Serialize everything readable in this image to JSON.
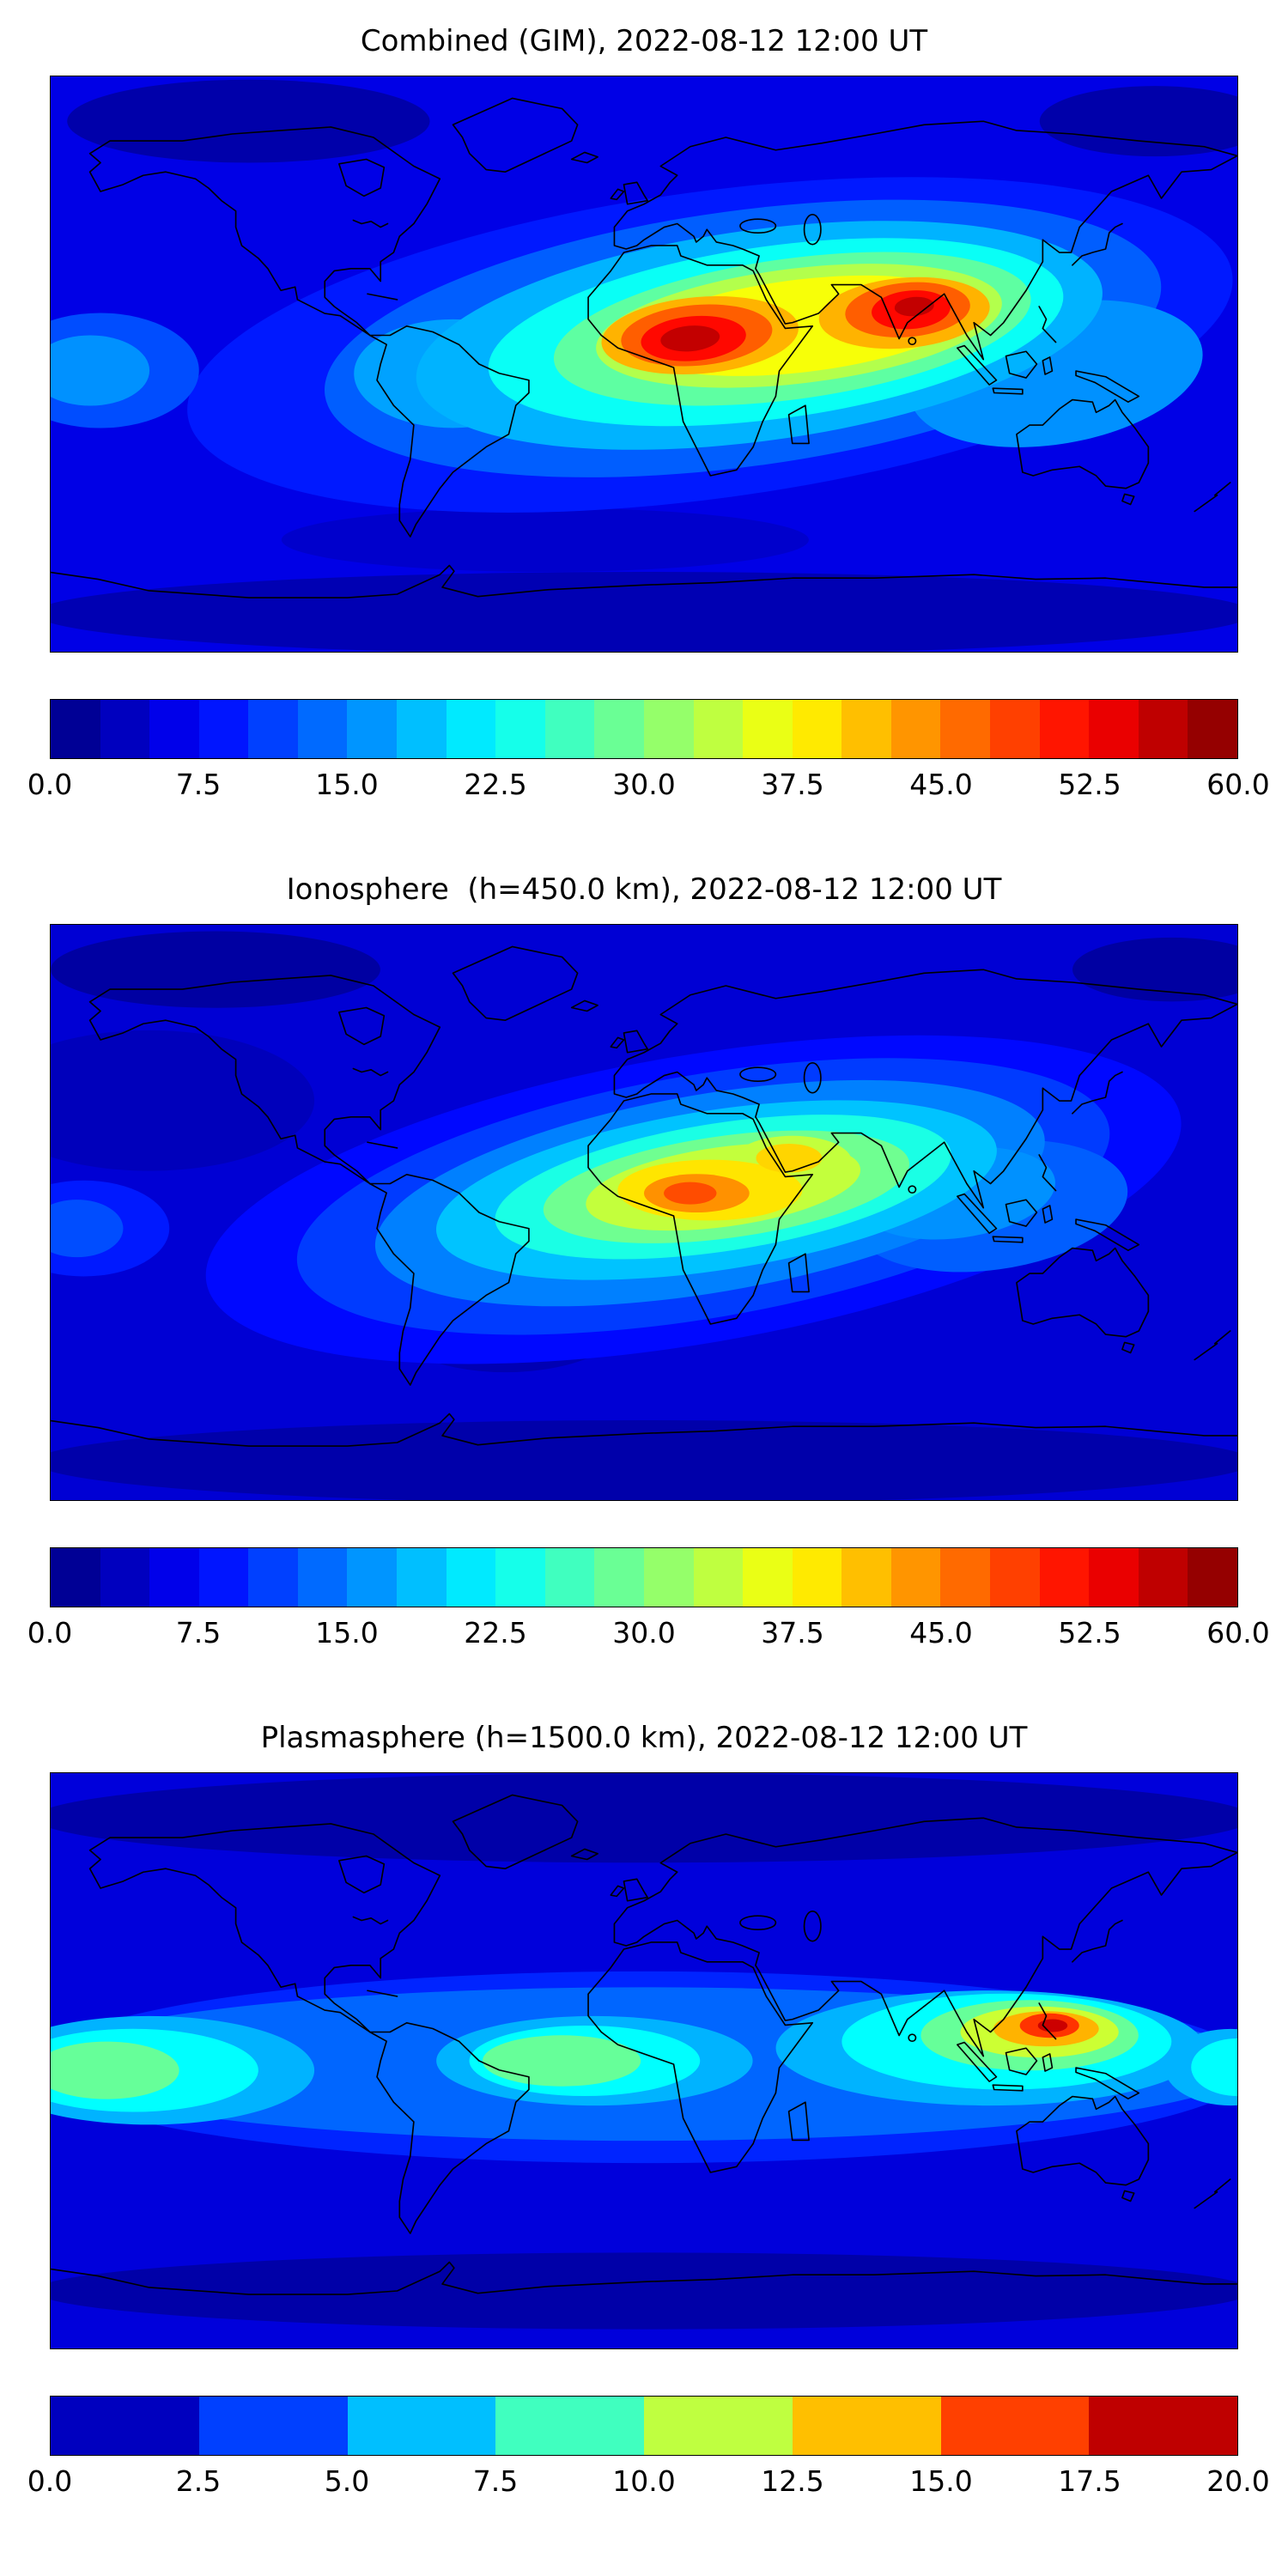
{
  "chart_data": [
    {
      "type": "heatmap",
      "subtype": "filled_contour_world_map",
      "title": "Combined (GIM), 2022-08-12 12:00 UT",
      "colormap": "jet",
      "lon_range": [
        -180,
        180
      ],
      "lat_range": [
        -90,
        90
      ],
      "grid": false,
      "base_value": 6,
      "colorbar": {
        "vmin": 0.0,
        "vmax": 60.0,
        "n_segments": 24,
        "orientation": "horizontal",
        "ticks": [
          "0.0",
          "7.5",
          "15.0",
          "22.5",
          "30.0",
          "37.5",
          "45.0",
          "52.5",
          "60.0"
        ]
      },
      "approx_contours": [
        {
          "lon": -120,
          "lat": 76,
          "rx": 55,
          "ry": 13,
          "v": 2.5
        },
        {
          "lon": 155,
          "lat": 76,
          "rx": 35,
          "ry": 11,
          "v": 2.5
        },
        {
          "lon": 0,
          "lat": -78,
          "rx": 185,
          "ry": 13,
          "v": 3
        },
        {
          "lon": -30,
          "lat": -55,
          "rx": 80,
          "ry": 10,
          "v": 4.5
        },
        {
          "lon": 20,
          "lat": 6,
          "rx": 160,
          "ry": 48,
          "rot": -8,
          "v": 9
        },
        {
          "lon": -165,
          "lat": -2,
          "rx": 30,
          "ry": 18,
          "v": 12
        },
        {
          "lon": -168,
          "lat": -2,
          "rx": 18,
          "ry": 11,
          "v": 16
        },
        {
          "lon": 30,
          "lat": 8,
          "rx": 128,
          "ry": 40,
          "rot": -8,
          "v": 13
        },
        {
          "lon": -58,
          "lat": -3,
          "rx": 30,
          "ry": 17,
          "v": 17
        },
        {
          "lon": 125,
          "lat": -3,
          "rx": 45,
          "ry": 22,
          "rot": -10,
          "v": 16
        },
        {
          "lon": 35,
          "lat": 9,
          "rx": 105,
          "ry": 33,
          "rot": -8,
          "v": 18
        },
        {
          "lon": 40,
          "lat": 10,
          "rx": 88,
          "ry": 27,
          "rot": -8,
          "v": 23
        },
        {
          "lon": 45,
          "lat": 11,
          "rx": 73,
          "ry": 22,
          "rot": -8,
          "v": 28
        },
        {
          "lon": 47,
          "lat": 12,
          "rx": 62,
          "ry": 18,
          "rot": -7,
          "v": 33
        },
        {
          "lon": 48,
          "lat": 12,
          "rx": 52,
          "ry": 14.5,
          "rot": -7,
          "v": 37
        },
        {
          "lon": 17,
          "lat": 9,
          "rx": 30,
          "ry": 12,
          "rot": -5,
          "v": 42
        },
        {
          "lon": 16,
          "lat": 9,
          "rx": 23,
          "ry": 9.5,
          "rot": -5,
          "v": 47
        },
        {
          "lon": 15,
          "lat": 8,
          "rx": 16,
          "ry": 7,
          "rot": -5,
          "v": 52
        },
        {
          "lon": 14,
          "lat": 8,
          "rx": 9,
          "ry": 4,
          "rot": -5,
          "v": 56
        },
        {
          "lon": 79,
          "lat": 16,
          "rx": 26,
          "ry": 11,
          "rot": -5,
          "v": 42
        },
        {
          "lon": 80,
          "lat": 17,
          "rx": 19,
          "ry": 8.5,
          "rot": -5,
          "v": 47
        },
        {
          "lon": 81,
          "lat": 17,
          "rx": 12,
          "ry": 6,
          "rot": -5,
          "v": 52
        },
        {
          "lon": 82,
          "lat": 18,
          "rx": 6,
          "ry": 3,
          "rot": -5,
          "v": 56
        }
      ]
    },
    {
      "type": "heatmap",
      "subtype": "filled_contour_world_map",
      "title": "Ionosphere  (h=450.0 km), 2022-08-12 12:00 UT",
      "colormap": "jet",
      "lon_range": [
        -180,
        180
      ],
      "lat_range": [
        -90,
        90
      ],
      "grid": false,
      "base_value": 5,
      "colorbar": {
        "vmin": 0.0,
        "vmax": 60.0,
        "n_segments": 24,
        "orientation": "horizontal",
        "ticks": [
          "0.0",
          "7.5",
          "15.0",
          "22.5",
          "30.0",
          "37.5",
          "45.0",
          "52.5",
          "60.0"
        ]
      },
      "approx_contours": [
        {
          "lon": -130,
          "lat": 76,
          "rx": 50,
          "ry": 12,
          "v": 2
        },
        {
          "lon": 160,
          "lat": 76,
          "rx": 30,
          "ry": 10,
          "v": 2
        },
        {
          "lon": 0,
          "lat": -78,
          "rx": 185,
          "ry": 13,
          "v": 2.5
        },
        {
          "lon": -42,
          "lat": -30,
          "rx": 40,
          "ry": 20,
          "v": 3
        },
        {
          "lon": -150,
          "lat": 35,
          "rx": 50,
          "ry": 22,
          "v": 3.5
        },
        {
          "lon": 15,
          "lat": 4,
          "rx": 150,
          "ry": 45,
          "rot": -10,
          "v": 8
        },
        {
          "lon": -170,
          "lat": -5,
          "rx": 26,
          "ry": 15,
          "v": 9
        },
        {
          "lon": -60,
          "lat": -8,
          "rx": 28,
          "ry": 16,
          "v": 10
        },
        {
          "lon": 18,
          "lat": 5,
          "rx": 125,
          "ry": 38,
          "rot": -10,
          "v": 11
        },
        {
          "lon": -172,
          "lat": -5,
          "rx": 14,
          "ry": 9,
          "v": 12
        },
        {
          "lon": -62,
          "lat": -10,
          "rx": 16,
          "ry": 9,
          "v": 12
        },
        {
          "lon": 105,
          "lat": 2,
          "rx": 42,
          "ry": 20,
          "rot": -8,
          "v": 13
        },
        {
          "lon": 20,
          "lat": 6,
          "rx": 103,
          "ry": 31,
          "rot": -10,
          "v": 15
        },
        {
          "lon": 95,
          "lat": 6,
          "rx": 30,
          "ry": 14,
          "rot": -8,
          "v": 16
        },
        {
          "lon": 22,
          "lat": 7,
          "rx": 86,
          "ry": 25,
          "rot": -9,
          "v": 19
        },
        {
          "lon": 24,
          "lat": 8,
          "rx": 70,
          "ry": 20,
          "rot": -9,
          "v": 24
        },
        {
          "lon": 25,
          "lat": 8,
          "rx": 56,
          "ry": 16,
          "rot": -8,
          "v": 29
        },
        {
          "lon": 24,
          "lat": 8,
          "rx": 42,
          "ry": 12.5,
          "rot": -8,
          "v": 34
        },
        {
          "lon": 45,
          "lat": 16,
          "rx": 18,
          "ry": 8,
          "v": 34
        },
        {
          "lon": 20,
          "lat": 7,
          "rx": 28,
          "ry": 9.5,
          "v": 39
        },
        {
          "lon": 44,
          "lat": 17,
          "rx": 10,
          "ry": 4.5,
          "v": 40
        },
        {
          "lon": 16,
          "lat": 6,
          "rx": 16,
          "ry": 6,
          "v": 44
        },
        {
          "lon": 14,
          "lat": 6,
          "rx": 8,
          "ry": 3.5,
          "v": 48
        }
      ]
    },
    {
      "type": "heatmap",
      "subtype": "filled_contour_world_map",
      "title": "Plasmasphere (h=1500.0 km), 2022-08-12 12:00 UT",
      "colormap": "jet",
      "lon_range": [
        -180,
        180
      ],
      "lat_range": [
        -90,
        90
      ],
      "grid": false,
      "base_value": 1.8,
      "colorbar": {
        "vmin": 0.0,
        "vmax": 20.0,
        "n_segments": 8,
        "orientation": "horizontal",
        "ticks": [
          "0.0",
          "2.5",
          "5.0",
          "7.5",
          "10.0",
          "12.5",
          "15.0",
          "17.5",
          "20.0"
        ]
      },
      "approx_contours": [
        {
          "lon": 0,
          "lat": 76,
          "rx": 185,
          "ry": 14,
          "v": 0.8
        },
        {
          "lon": 0,
          "lat": -72,
          "rx": 185,
          "ry": 12,
          "v": 0.8
        },
        {
          "lon": 0,
          "lat": -2,
          "rx": 185,
          "ry": 30,
          "v": 3.2
        },
        {
          "lon": 0,
          "lat": -1,
          "rx": 185,
          "ry": 24,
          "v": 4.5
        },
        {
          "lon": -150,
          "lat": -3,
          "rx": 50,
          "ry": 17,
          "v": 6
        },
        {
          "lon": -15,
          "lat": 0,
          "rx": 48,
          "ry": 14,
          "v": 6
        },
        {
          "lon": 105,
          "lat": 4,
          "rx": 65,
          "ry": 18,
          "v": 6
        },
        {
          "lon": 178,
          "lat": -2,
          "rx": 20,
          "ry": 12,
          "v": 6
        },
        {
          "lon": -155,
          "lat": -3,
          "rx": 38,
          "ry": 13,
          "v": 7.5
        },
        {
          "lon": -18,
          "lat": 0,
          "rx": 35,
          "ry": 11,
          "v": 7.5
        },
        {
          "lon": 110,
          "lat": 6,
          "rx": 50,
          "ry": 15,
          "v": 7.5
        },
        {
          "lon": 180,
          "lat": -2,
          "rx": 14,
          "ry": 9,
          "v": 7.5
        },
        {
          "lon": -163,
          "lat": -3,
          "rx": 22,
          "ry": 9,
          "v": 9.5
        },
        {
          "lon": -25,
          "lat": 0,
          "rx": 24,
          "ry": 8,
          "v": 9.5
        },
        {
          "lon": 117,
          "lat": 8,
          "rx": 33,
          "ry": 11,
          "v": 9.5
        },
        {
          "lon": 120,
          "lat": 9,
          "rx": 24,
          "ry": 8,
          "v": 11.5
        },
        {
          "lon": 122,
          "lat": 10,
          "rx": 16,
          "ry": 5.5,
          "v": 14
        },
        {
          "lon": 123,
          "lat": 11,
          "rx": 9,
          "ry": 3.8,
          "v": 16.5
        },
        {
          "lon": 124,
          "lat": 11,
          "rx": 4.5,
          "ry": 2,
          "v": 18.5
        }
      ]
    }
  ]
}
